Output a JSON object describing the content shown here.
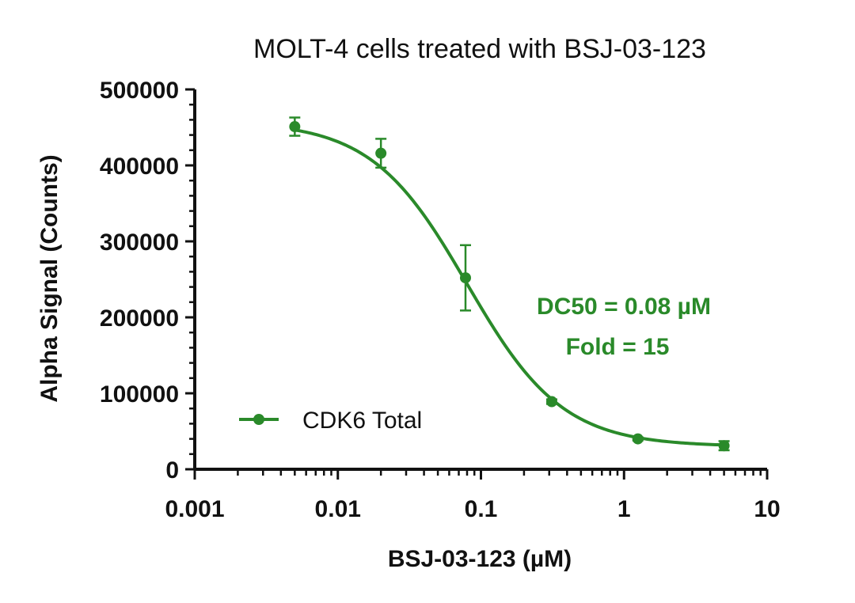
{
  "chart_data": {
    "type": "scatter",
    "title": "MOLT-4 cells treated with BSJ-03-123",
    "xlabel": "BSJ-03-123 (µM)",
    "ylabel": "Alpha Signal (Counts)",
    "x_scale": "log",
    "xlim": [
      0.001,
      10
    ],
    "ylim": [
      0,
      500000
    ],
    "x_ticks": [
      0.001,
      0.01,
      0.1,
      1,
      10
    ],
    "x_tick_labels": [
      "0.001",
      "0.01",
      "0.1",
      "1",
      "10"
    ],
    "y_ticks": [
      0,
      100000,
      200000,
      300000,
      400000,
      500000
    ],
    "y_tick_labels": [
      "0",
      "100000",
      "200000",
      "300000",
      "400000",
      "500000"
    ],
    "grid": false,
    "legend_position": "bottom-left",
    "series": [
      {
        "name": "CDK6 Total",
        "color": "#2a8a2a",
        "x": [
          0.005,
          0.02,
          0.078,
          0.3125,
          1.25,
          5
        ],
        "y": [
          451000,
          416000,
          252000,
          89000,
          40000,
          31000
        ],
        "error": [
          12000,
          19000,
          43000,
          3000,
          2000,
          6000
        ],
        "fit": {
          "model": "four-parameter logistic",
          "top": 458000,
          "bottom": 30000,
          "dc50": 0.08,
          "hill": 1.3
        }
      }
    ],
    "annotations": [
      {
        "text": "DC50 = 0.08 µM",
        "color": "#2a8a2a"
      },
      {
        "text": "Fold = 15",
        "color": "#2a8a2a"
      }
    ]
  }
}
